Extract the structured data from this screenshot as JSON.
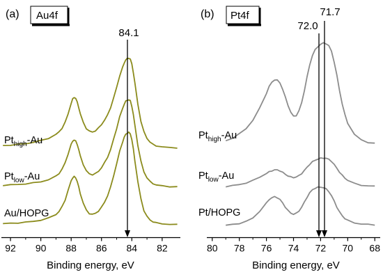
{
  "chart_data": [
    {
      "type": "line",
      "panel_label": "(a)",
      "element_label": "Au4f",
      "xlabel": "Binding energy, eV",
      "ylabel": "",
      "x_reversed": true,
      "xlim": [
        92.6,
        80.8
      ],
      "x_ticks": [
        92,
        90,
        88,
        86,
        84,
        82
      ],
      "y_axis": "arbitrary, stacked, no ticks",
      "grid": false,
      "color": "#8b8b1c",
      "marker": {
        "x": 84.1,
        "label": "84.1"
      },
      "series": [
        {
          "name_main": "Pt",
          "name_sub": "high",
          "name_tail": "-Au",
          "x": [
            92.5,
            92.0,
            91.5,
            91.0,
            90.5,
            90.0,
            89.5,
            89.0,
            88.8,
            88.6,
            88.4,
            88.2,
            88.0,
            87.9,
            87.8,
            87.7,
            87.6,
            87.5,
            87.4,
            87.2,
            87.0,
            86.8,
            86.6,
            86.4,
            86.2,
            86.0,
            85.8,
            85.6,
            85.4,
            85.2,
            85.0,
            84.8,
            84.6,
            84.5,
            84.4,
            84.3,
            84.2,
            84.1,
            84.0,
            83.9,
            83.8,
            83.6,
            83.4,
            83.2,
            83.0,
            82.8,
            82.6,
            82.4,
            82.0,
            81.5,
            81.0
          ],
          "y": [
            1.6,
            1.8,
            2.1,
            2.5,
            3.1,
            3.9,
            5.0,
            6.8,
            8.0,
            9.8,
            12.5,
            16.5,
            21.5,
            23.5,
            24.3,
            23.8,
            22.0,
            19.5,
            16.5,
            12.5,
            9.6,
            8.3,
            8.0,
            8.5,
            9.8,
            11.5,
            13.5,
            16.0,
            19.5,
            24.0,
            29.0,
            34.5,
            38.5,
            40.5,
            42.0,
            42.5,
            42.8,
            42.3,
            40.0,
            36.0,
            31.0,
            21.0,
            13.0,
            8.0,
            5.0,
            3.2,
            2.1,
            1.5,
            0.9,
            0.6,
            0.5
          ]
        },
        {
          "name_main": "Pt",
          "name_sub": "low",
          "name_tail": "-Au",
          "x": [
            92.5,
            92.0,
            91.5,
            91.0,
            90.5,
            90.0,
            89.5,
            89.0,
            88.8,
            88.6,
            88.4,
            88.2,
            88.0,
            87.9,
            87.8,
            87.7,
            87.6,
            87.5,
            87.4,
            87.2,
            87.0,
            86.8,
            86.6,
            86.4,
            86.2,
            86.0,
            85.8,
            85.6,
            85.4,
            85.2,
            85.0,
            84.8,
            84.6,
            84.5,
            84.4,
            84.3,
            84.2,
            84.1,
            84.0,
            83.9,
            83.8,
            83.6,
            83.4,
            83.2,
            83.0,
            82.8,
            82.6,
            82.4,
            82.0,
            81.5,
            81.0
          ],
          "y": [
            1.2,
            1.4,
            1.6,
            1.9,
            2.3,
            2.9,
            3.8,
            5.5,
            6.8,
            8.8,
            11.8,
            16.0,
            20.5,
            22.0,
            22.6,
            22.0,
            20.5,
            18.0,
            15.0,
            11.0,
            8.0,
            6.6,
            6.2,
            6.7,
            7.8,
            9.5,
            11.8,
            14.5,
            18.0,
            23.0,
            28.0,
            33.5,
            37.5,
            39.5,
            40.8,
            41.3,
            41.5,
            41.0,
            38.5,
            34.5,
            29.5,
            20.0,
            12.5,
            7.5,
            4.8,
            3.0,
            2.0,
            1.4,
            0.9,
            0.6,
            0.5
          ]
        },
        {
          "name_main": "Au/HOPG",
          "name_sub": "",
          "name_tail": "",
          "x": [
            92.5,
            92.0,
            91.5,
            91.0,
            90.5,
            90.0,
            89.5,
            89.0,
            88.8,
            88.6,
            88.4,
            88.2,
            88.0,
            87.9,
            87.8,
            87.7,
            87.6,
            87.5,
            87.4,
            87.2,
            87.0,
            86.8,
            86.6,
            86.4,
            86.2,
            86.0,
            85.8,
            85.6,
            85.4,
            85.2,
            85.0,
            84.8,
            84.6,
            84.5,
            84.4,
            84.3,
            84.2,
            84.1,
            84.0,
            83.9,
            83.8,
            83.6,
            83.4,
            83.2,
            83.0,
            82.8,
            82.6,
            82.4,
            82.0,
            81.5,
            81.0
          ],
          "y": [
            0.8,
            1.0,
            1.2,
            1.5,
            1.9,
            2.5,
            3.4,
            5.2,
            6.6,
            8.8,
            12.0,
            16.5,
            21.0,
            22.5,
            23.0,
            22.4,
            20.8,
            18.0,
            15.0,
            10.5,
            7.2,
            5.6,
            5.2,
            5.7,
            6.8,
            8.5,
            11.0,
            14.0,
            18.0,
            23.5,
            29.0,
            35.0,
            39.5,
            41.5,
            43.0,
            43.5,
            43.8,
            43.2,
            40.5,
            36.0,
            30.5,
            20.5,
            12.5,
            7.0,
            4.2,
            2.6,
            1.7,
            1.2,
            0.8,
            0.5,
            0.4
          ]
        }
      ]
    },
    {
      "type": "line",
      "panel_label": "(b)",
      "element_label": "Pt4f",
      "xlabel": "Binding energy, eV",
      "ylabel": "",
      "x_reversed": true,
      "xlim": [
        80.4,
        67.6
      ],
      "x_ticks": [
        80,
        78,
        76,
        74,
        72,
        70,
        68
      ],
      "y_axis": "arbitrary, stacked, no ticks",
      "grid": false,
      "color": "#8c8c8c",
      "markers": [
        {
          "x": 72.0,
          "label": "72.0"
        },
        {
          "x": 71.7,
          "label": "71.7"
        }
      ],
      "series": [
        {
          "name_main": "Pt",
          "name_sub": "high",
          "name_tail": "-Au",
          "x": [
            79.0,
            78.5,
            78.0,
            77.5,
            77.0,
            76.5,
            76.0,
            75.8,
            75.6,
            75.4,
            75.2,
            75.0,
            74.8,
            74.6,
            74.4,
            74.2,
            74.0,
            73.8,
            73.6,
            73.4,
            73.2,
            73.0,
            72.8,
            72.6,
            72.4,
            72.2,
            72.0,
            71.8,
            71.6,
            71.4,
            71.2,
            71.0,
            70.8,
            70.6,
            70.4,
            70.2,
            70.0,
            69.5,
            69.0,
            68.5,
            68.0
          ],
          "y": [
            2.5,
            3.5,
            5.0,
            7.0,
            10.0,
            14.5,
            20.0,
            22.5,
            24.0,
            25.0,
            24.8,
            23.8,
            21.5,
            18.5,
            15.5,
            13.0,
            11.5,
            11.8,
            13.5,
            16.5,
            21.0,
            26.0,
            30.5,
            34.0,
            36.0,
            37.2,
            38.0,
            38.5,
            38.3,
            37.5,
            35.5,
            31.5,
            26.5,
            21.0,
            16.0,
            12.0,
            9.0,
            4.8,
            2.8,
            1.9,
            1.5
          ]
        },
        {
          "name_main": "Pt",
          "name_sub": "low",
          "name_tail": "-Au",
          "x": [
            79.0,
            78.5,
            78.0,
            77.5,
            77.0,
            76.5,
            76.0,
            75.8,
            75.6,
            75.4,
            75.2,
            75.0,
            74.8,
            74.6,
            74.4,
            74.2,
            74.0,
            73.8,
            73.6,
            73.4,
            73.2,
            73.0,
            72.8,
            72.6,
            72.4,
            72.2,
            72.0,
            71.8,
            71.6,
            71.4,
            71.2,
            71.0,
            70.8,
            70.6,
            70.4,
            70.2,
            70.0,
            69.5,
            69.0,
            68.5,
            68.0
          ],
          "y": [
            0.5,
            0.8,
            1.2,
            1.8,
            2.7,
            4.0,
            5.3,
            5.9,
            6.3,
            6.6,
            6.6,
            6.3,
            5.7,
            5.0,
            4.4,
            4.0,
            3.8,
            4.0,
            4.5,
            5.3,
            6.4,
            7.6,
            8.7,
            9.6,
            10.2,
            10.6,
            10.9,
            11.0,
            10.9,
            10.5,
            9.8,
            8.6,
            7.2,
            5.8,
            4.6,
            3.6,
            2.8,
            1.6,
            1.0,
            0.7,
            0.6
          ]
        },
        {
          "name_main": "Pt/HOPG",
          "name_sub": "",
          "name_tail": "",
          "x": [
            79.0,
            78.5,
            78.0,
            77.5,
            77.0,
            76.5,
            76.0,
            75.8,
            75.6,
            75.4,
            75.2,
            75.0,
            74.8,
            74.6,
            74.4,
            74.2,
            74.0,
            73.8,
            73.6,
            73.4,
            73.2,
            73.0,
            72.8,
            72.6,
            72.4,
            72.2,
            72.0,
            71.8,
            71.6,
            71.4,
            71.2,
            71.0,
            70.8,
            70.6,
            70.4,
            70.2,
            70.0,
            69.5,
            69.0,
            68.5,
            68.0
          ],
          "y": [
            0.3,
            0.6,
            1.0,
            1.7,
            3.0,
            5.5,
            8.5,
            9.8,
            10.5,
            10.8,
            10.5,
            9.8,
            8.5,
            7.0,
            5.7,
            4.8,
            4.4,
            4.7,
            5.6,
            7.0,
            8.8,
            10.7,
            12.3,
            13.4,
            14.0,
            14.3,
            14.4,
            14.2,
            13.7,
            12.8,
            11.2,
            9.2,
            7.0,
            5.2,
            3.8,
            2.8,
            2.1,
            1.2,
            0.8,
            0.6,
            0.5
          ]
        }
      ]
    }
  ]
}
